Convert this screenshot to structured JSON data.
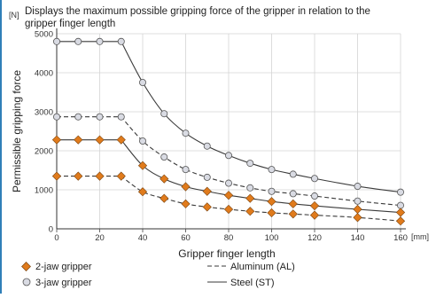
{
  "chart_data": {
    "type": "line",
    "title": "Displays the maximum possible gripping force of the gripper in relation to the gripper finger length",
    "title_lines": [
      "Displays the maximum possible gripping force of the gripper in relation to the",
      "gripper finger length"
    ],
    "y_unit": "[N]",
    "x_unit": "[mm]",
    "xlabel": "Gripper finger length",
    "ylabel": "Permissible gripping force",
    "xlim": [
      0,
      160
    ],
    "ylim": [
      0,
      5000
    ],
    "x_ticks": [
      "0",
      "20",
      "40",
      "60",
      "80",
      "100",
      "120",
      "140",
      "160"
    ],
    "y_ticks": [
      "0",
      "1000",
      "2000",
      "3000",
      "4000",
      "5000"
    ],
    "grid": true,
    "legend_position": "bottom-left",
    "legend": {
      "jaw2": "2-jaw gripper",
      "jaw3": "3-jaw gripper",
      "aluminum": "Aluminum (AL)",
      "steel": "Steel (ST)"
    },
    "colors": {
      "jaw2_marker": "#e07b1c",
      "jaw3_marker": "#d9dbe3",
      "line": "#3a3a3a",
      "grid": "#d4d4d4"
    },
    "series": [
      {
        "jaw": "3-jaw",
        "material": "ST",
        "dash": false,
        "x": [
          0,
          10,
          20,
          30,
          40,
          50,
          60,
          70,
          80,
          90,
          100,
          110,
          120,
          140,
          160
        ],
        "y": [
          4800,
          4800,
          4800,
          4800,
          3750,
          2950,
          2450,
          2120,
          1880,
          1680,
          1520,
          1400,
          1290,
          1090,
          940
        ]
      },
      {
        "jaw": "3-jaw",
        "material": "AL",
        "dash": true,
        "x": [
          0,
          10,
          20,
          30,
          40,
          50,
          60,
          70,
          80,
          90,
          100,
          110,
          120,
          140,
          160
        ],
        "y": [
          2870,
          2870,
          2870,
          2870,
          2250,
          1840,
          1520,
          1320,
          1170,
          1050,
          960,
          900,
          840,
          710,
          600
        ]
      },
      {
        "jaw": "2-jaw",
        "material": "ST",
        "dash": false,
        "x": [
          0,
          10,
          20,
          30,
          40,
          50,
          60,
          70,
          80,
          90,
          100,
          110,
          120,
          140,
          160
        ],
        "y": [
          2280,
          2280,
          2280,
          2280,
          1620,
          1280,
          1080,
          960,
          860,
          780,
          700,
          640,
          590,
          500,
          420
        ]
      },
      {
        "jaw": "2-jaw",
        "material": "AL",
        "dash": true,
        "x": [
          0,
          10,
          20,
          30,
          40,
          50,
          60,
          70,
          80,
          90,
          100,
          110,
          120,
          140,
          160
        ],
        "y": [
          1350,
          1350,
          1350,
          1350,
          950,
          780,
          640,
          560,
          500,
          450,
          410,
          380,
          350,
          290,
          200
        ]
      }
    ]
  }
}
